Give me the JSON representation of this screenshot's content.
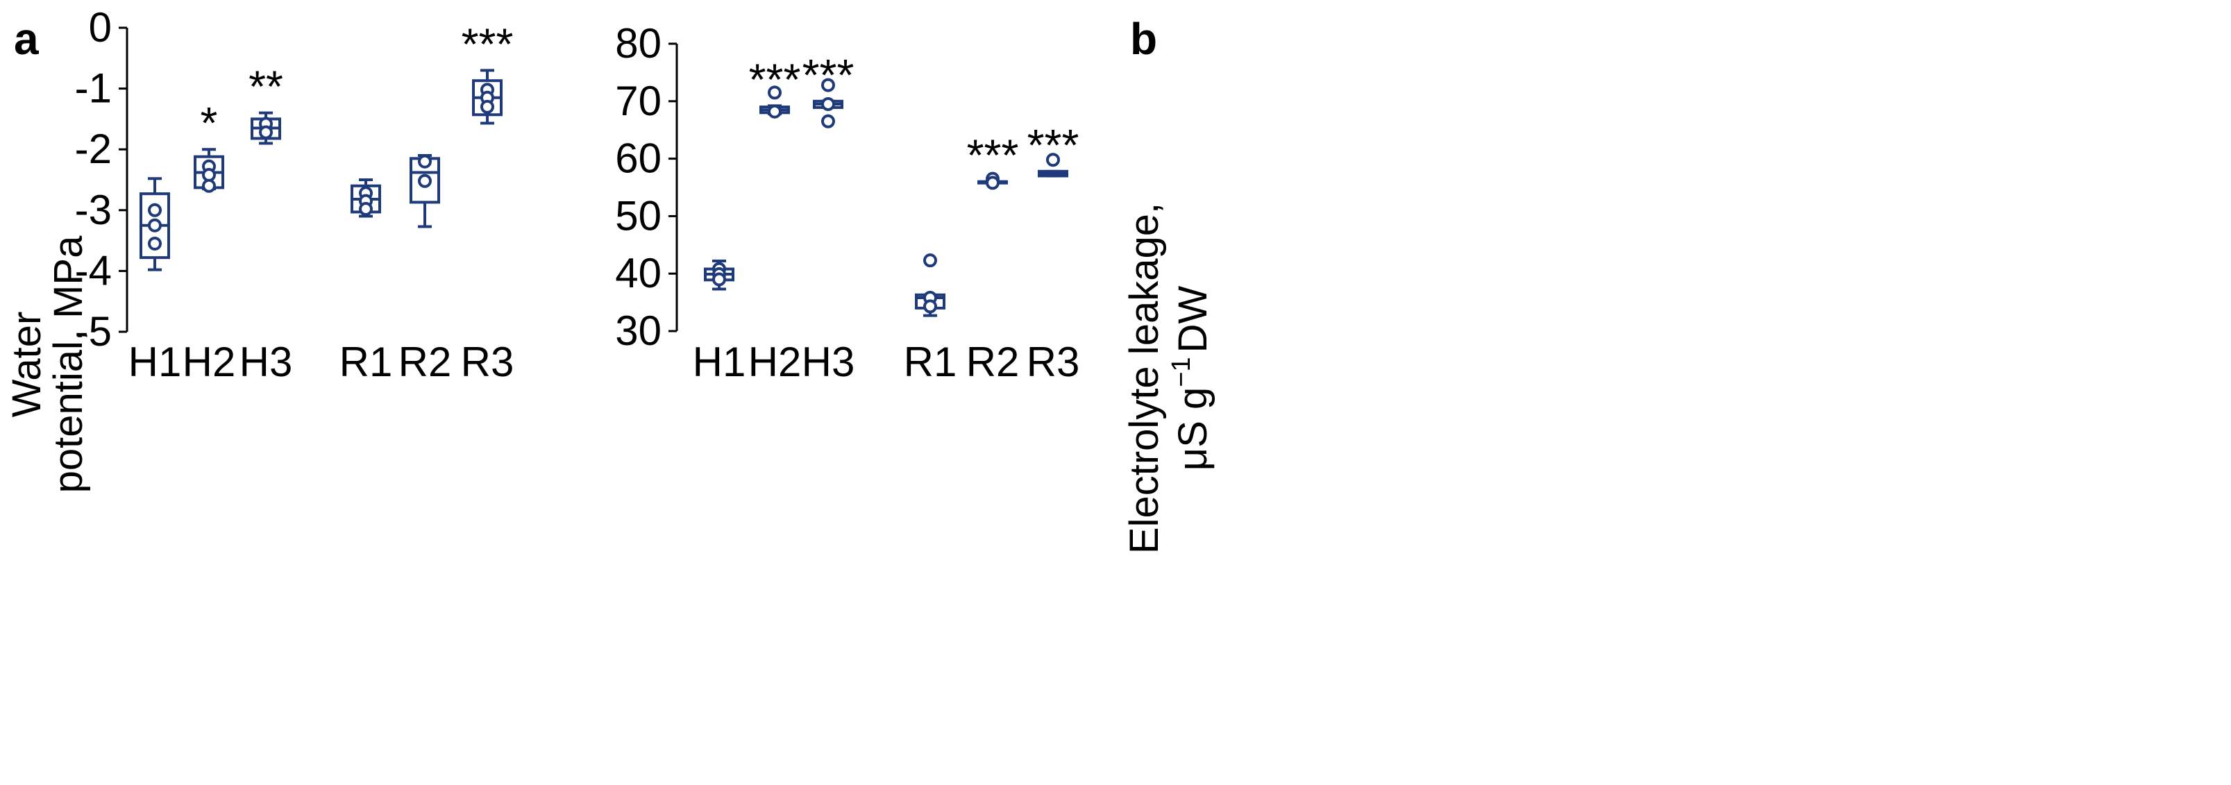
{
  "colors": {
    "box": "#1f3a7a",
    "axis": "#000000"
  },
  "chart_data": [
    {
      "type": "box",
      "panel": "a",
      "ylabel_line1": "Water",
      "ylabel_line2": "potential, MPa",
      "ylim": [
        -5,
        0
      ],
      "yticks": [
        0,
        -1,
        -2,
        -3,
        -4,
        -5
      ],
      "ytick_labels": [
        "0",
        "-1",
        "-2",
        "-3",
        "-4",
        "-5"
      ],
      "categories": [
        "H1",
        "H2",
        "H3",
        "R1",
        "R2",
        "R3"
      ],
      "group_gap_after": 2,
      "boxes": [
        {
          "label": "H1",
          "min": -3.98,
          "q1": -3.78,
          "median": -3.25,
          "q3": -2.73,
          "max": -2.48,
          "points": [
            -3.0,
            -3.25,
            -3.55
          ],
          "sig": ""
        },
        {
          "label": "H2",
          "min": -2.65,
          "q1": -2.63,
          "median": -2.38,
          "q3": -2.12,
          "max": -2.0,
          "points": [
            -2.28,
            -2.42,
            -2.6
          ],
          "sig": "*"
        },
        {
          "label": "H3",
          "min": -1.9,
          "q1": -1.82,
          "median": -1.65,
          "q3": -1.5,
          "max": -1.4,
          "points": [
            -1.58,
            -1.72
          ],
          "sig": "**"
        },
        {
          "label": "R1",
          "min": -3.1,
          "q1": -3.03,
          "median": -2.82,
          "q3": -2.6,
          "max": -2.5,
          "points": [
            -2.72,
            -2.85,
            -2.98
          ],
          "sig": ""
        },
        {
          "label": "R2",
          "min": -3.27,
          "q1": -2.87,
          "median": -2.38,
          "q3": -2.15,
          "max": -2.1,
          "points": [
            -2.2,
            -2.52
          ],
          "sig": ""
        },
        {
          "label": "R3",
          "min": -1.57,
          "q1": -1.43,
          "median": -1.15,
          "q3": -0.87,
          "max": -0.7,
          "points": [
            -1.02,
            -1.15,
            -1.3
          ],
          "sig": "***"
        }
      ]
    },
    {
      "type": "box",
      "panel": "b",
      "ylabel_line1": "Electrolyte leakage,",
      "ylabel_line2_pre": "μS g",
      "ylabel_line2_sup": "−1",
      "ylabel_line2_post": "DW",
      "ylim": [
        30,
        80
      ],
      "yticks": [
        30,
        40,
        50,
        60,
        70,
        80
      ],
      "ytick_labels": [
        "30",
        "40",
        "50",
        "60",
        "70",
        "80"
      ],
      "categories": [
        "H1",
        "H2",
        "H3",
        "R1",
        "R2",
        "R3"
      ],
      "group_gap_after": 2,
      "boxes": [
        {
          "label": "H1",
          "min": 37.3,
          "q1": 38.9,
          "median": 39.9,
          "q3": 40.8,
          "max": 42.2,
          "points": [
            40.8,
            39.9,
            39.0
          ],
          "sig": ""
        },
        {
          "label": "H2",
          "min": 67.8,
          "q1": 68.0,
          "median": 68.5,
          "q3": 69.0,
          "max": 69.2,
          "points": [
            71.5,
            68.2
          ],
          "sig": "***"
        },
        {
          "label": "H3",
          "min": 68.9,
          "q1": 68.9,
          "median": 69.5,
          "q3": 70.0,
          "max": 70.0,
          "points": [
            72.8,
            69.5,
            66.5
          ],
          "sig": "***"
        },
        {
          "label": "R1",
          "min": 32.7,
          "q1": 34.0,
          "median": 35.8,
          "q3": 36.3,
          "max": 36.3,
          "points": [
            42.3,
            35.8,
            34.3
          ],
          "sig": ""
        },
        {
          "label": "R2",
          "min": 56.0,
          "q1": 56.0,
          "median": 56.0,
          "q3": 56.0,
          "max": 56.0,
          "points": [
            56.5,
            55.8
          ],
          "sig": "***"
        },
        {
          "label": "R3",
          "min": 57.0,
          "q1": 57.0,
          "median": 57.4,
          "q3": 57.8,
          "max": 57.8,
          "points": [
            59.8
          ],
          "sig": "***"
        }
      ]
    }
  ]
}
